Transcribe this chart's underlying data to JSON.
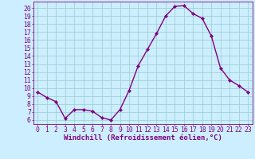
{
  "x": [
    0,
    1,
    2,
    3,
    4,
    5,
    6,
    7,
    8,
    9,
    10,
    11,
    12,
    13,
    14,
    15,
    16,
    17,
    18,
    19,
    20,
    21,
    22,
    23
  ],
  "y": [
    9.5,
    8.8,
    8.3,
    6.2,
    7.3,
    7.3,
    7.1,
    6.3,
    6.0,
    7.3,
    9.7,
    12.8,
    14.8,
    16.8,
    19.0,
    20.2,
    20.3,
    19.3,
    18.7,
    16.5,
    12.5,
    11.0,
    10.3,
    9.5
  ],
  "line_color": "#800080",
  "marker": "D",
  "marker_size": 2.2,
  "linewidth": 1.0,
  "bg_color": "#cceeff",
  "grid_color": "#99cccc",
  "xlabel": "Windchill (Refroidissement éolien,°C)",
  "ylabel": "",
  "xlim": [
    -0.5,
    23.5
  ],
  "ylim": [
    5.5,
    20.8
  ],
  "yticks": [
    6,
    7,
    8,
    9,
    10,
    11,
    12,
    13,
    14,
    15,
    16,
    17,
    18,
    19,
    20
  ],
  "xticks": [
    0,
    1,
    2,
    3,
    4,
    5,
    6,
    7,
    8,
    9,
    10,
    11,
    12,
    13,
    14,
    15,
    16,
    17,
    18,
    19,
    20,
    21,
    22,
    23
  ],
  "axis_color": "#800080",
  "label_fontsize": 6.5,
  "tick_fontsize": 5.8
}
